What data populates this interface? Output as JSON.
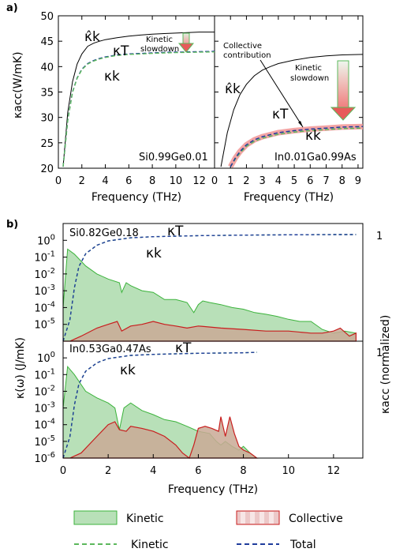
{
  "chart_data": [
    {
      "panel": "a)",
      "type": "line",
      "ylabel": "κacc(W/mK)",
      "ylim": [
        20,
        50
      ],
      "yticks": [
        20,
        25,
        30,
        35,
        40,
        45,
        50
      ],
      "sub": [
        {
          "sample": "Si0.99Ge0.01",
          "xlabel": "Frequency (THz)",
          "xlim": [
            0,
            13.3
          ],
          "xticks": [
            0,
            2,
            4,
            6,
            8,
            10,
            12
          ],
          "series": [
            {
              "name": "κ̂k",
              "x": [
                0.4,
                0.8,
                1.2,
                1.6,
                2.0,
                2.5,
                3.0,
                3.5,
                4.0,
                5.0,
                6.0,
                7.0,
                8.0,
                9.0,
                10.0,
                11.0,
                12.0,
                13.3
              ],
              "y": [
                20.3,
                31.0,
                37.0,
                40.5,
                42.5,
                44.0,
                44.6,
                45.0,
                45.3,
                45.7,
                46.0,
                46.2,
                46.4,
                46.5,
                46.6,
                46.7,
                46.8,
                46.8
              ]
            },
            {
              "name": "κT",
              "x": [
                0.4,
                0.8,
                1.2,
                1.6,
                2.0,
                2.5,
                3.0,
                3.5,
                4.0,
                5.0,
                6.0,
                7.0,
                8.0,
                9.0,
                10.0,
                11.0,
                12.0,
                13.3
              ],
              "y": [
                20.3,
                29.5,
                35.0,
                37.8,
                39.5,
                40.6,
                41.2,
                41.6,
                41.9,
                42.3,
                42.5,
                42.6,
                42.7,
                42.8,
                42.85,
                42.9,
                42.95,
                43.0
              ]
            },
            {
              "name": "κk",
              "x": [
                0.4,
                0.8,
                1.2,
                1.6,
                2.0,
                2.5,
                3.0,
                3.5,
                4.0,
                5.0,
                6.0,
                7.0,
                8.0,
                9.0,
                10.0,
                11.0,
                12.0,
                13.3
              ],
              "y": [
                20.3,
                29.4,
                34.9,
                37.7,
                39.4,
                40.5,
                41.1,
                41.5,
                41.8,
                42.2,
                42.4,
                42.5,
                42.6,
                42.7,
                42.75,
                42.8,
                42.85,
                42.9
              ]
            }
          ],
          "annotations": [
            "Kinetic",
            "slowdown"
          ]
        },
        {
          "sample": "In0.01Ga0.99As",
          "xlabel": "Frequency (THz)",
          "xlim": [
            0,
            9.3
          ],
          "xticks": [
            0,
            1,
            2,
            3,
            4,
            5,
            6,
            7,
            8,
            9
          ],
          "series": [
            {
              "name": "κ̂k",
              "x": [
                0.4,
                0.8,
                1.2,
                1.6,
                2.0,
                2.5,
                3.0,
                3.5,
                4.0,
                5.0,
                6.0,
                7.0,
                8.0,
                9.3
              ],
              "y": [
                20.3,
                27.0,
                31.5,
                34.5,
                36.5,
                38.2,
                39.3,
                40.0,
                40.6,
                41.3,
                41.8,
                42.1,
                42.3,
                42.4
              ]
            },
            {
              "name": "κT",
              "x": [
                1.0,
                1.3,
                1.6,
                2.0,
                2.5,
                3.0,
                3.5,
                4.0,
                5.0,
                6.0,
                7.0,
                8.0,
                9.3
              ],
              "y": [
                20.3,
                22.0,
                23.3,
                24.6,
                25.6,
                26.2,
                26.6,
                27.0,
                27.4,
                27.7,
                27.9,
                28.1,
                28.2
              ]
            },
            {
              "name": "κk",
              "x": [
                1.0,
                1.3,
                1.6,
                2.0,
                2.5,
                3.0,
                3.5,
                4.0,
                5.0,
                6.0,
                7.0,
                8.0,
                9.3
              ],
              "y": [
                20.3,
                21.8,
                23.0,
                24.3,
                25.3,
                25.9,
                26.3,
                26.7,
                27.1,
                27.4,
                27.6,
                27.8,
                27.9
              ]
            }
          ],
          "annotations": [
            "Collective",
            "contribution",
            "Kinetic",
            "slowdown"
          ]
        }
      ]
    },
    {
      "panel": "b)",
      "type": "area",
      "ylabel": "κ(ω) (J/mK)",
      "y2label": "κacc (normalized)",
      "y2tick": "1",
      "xlabel": "Frequency (THz)",
      "xlim": [
        0,
        13.3
      ],
      "xticks": [
        0,
        2,
        4,
        6,
        8,
        10,
        12
      ],
      "yscale": "log",
      "sub": [
        {
          "sample": "Si0.82Ge0.18",
          "ylim": [
            1e-06,
            10
          ],
          "yticks": [
            "10^0",
            "10^-1",
            "10^-2",
            "10^-3",
            "10^-4",
            "10^-5"
          ],
          "kinetic": {
            "x": [
              0,
              0.2,
              0.5,
              1.0,
              1.5,
              2.0,
              2.5,
              2.6,
              2.8,
              3.0,
              3.5,
              4.0,
              4.5,
              5.0,
              5.5,
              5.8,
              6.0,
              6.2,
              6.5,
              7.0,
              7.5,
              8.0,
              8.5,
              9.0,
              9.5,
              10.0,
              10.5,
              11.0,
              11.5,
              12.0,
              12.5,
              13.0
            ],
            "y": [
              0.0001,
              0.3,
              0.15,
              0.03,
              0.01,
              0.005,
              0.003,
              0.0008,
              0.003,
              0.002,
              0.001,
              0.0008,
              0.0003,
              0.0003,
              0.0002,
              5e-05,
              0.00015,
              0.00025,
              0.0002,
              0.00015,
              0.0001,
              8e-05,
              5e-05,
              4e-05,
              3e-05,
              2e-05,
              1.5e-05,
              1.5e-05,
              5e-06,
              3e-06,
              4e-06,
              3e-06
            ]
          },
          "collective": {
            "x": [
              0,
              0.3,
              0.8,
              1.5,
              2.0,
              2.4,
              2.6,
              3.0,
              3.5,
              4.0,
              4.5,
              5.0,
              5.5,
              6.0,
              7.0,
              8.0,
              9.0,
              10.0,
              11.0,
              11.5,
              12.0,
              12.3,
              12.7,
              13.0
            ],
            "y": [
              1e-06,
              1e-06,
              2e-06,
              6e-06,
              1e-05,
              1.5e-05,
              4e-06,
              8e-06,
              1e-05,
              1.5e-05,
              1e-05,
              8e-06,
              6e-06,
              8e-06,
              6e-06,
              5e-06,
              4e-06,
              4e-06,
              3e-06,
              3e-06,
              4e-06,
              6e-06,
              2e-06,
              3e-06
            ]
          },
          "kinetic_acc": {
            "x": [
              0,
              0.3,
              0.5,
              0.7,
              1.0,
              1.5,
              2.0,
              3.0,
              4.0,
              6.0,
              8.0,
              10.0,
              12.0,
              13.0
            ],
            "y": [
              0,
              0.2,
              0.5,
              0.7,
              0.82,
              0.9,
              0.94,
              0.97,
              0.98,
              0.99,
              0.995,
              0.998,
              1,
              1
            ]
          },
          "total_acc": {
            "x": [
              0,
              0.3,
              0.5,
              0.7,
              1.0,
              1.5,
              2.0,
              3.0,
              4.0,
              6.0,
              8.0,
              10.0,
              12.0,
              13.0
            ],
            "y": [
              0,
              0.2,
              0.5,
              0.7,
              0.82,
              0.9,
              0.94,
              0.97,
              0.98,
              0.99,
              0.995,
              0.998,
              1,
              1
            ]
          },
          "labels": [
            "κT",
            "κk"
          ]
        },
        {
          "sample": "In0.53Ga0.47As",
          "ylim": [
            1e-06,
            10
          ],
          "yticks": [
            "10^0",
            "10^-1",
            "10^-2",
            "10^-3",
            "10^-4",
            "10^-5",
            "10^-6"
          ],
          "kinetic": {
            "x": [
              0,
              0.2,
              0.5,
              1.0,
              1.5,
              2.0,
              2.3,
              2.5,
              2.7,
              3.0,
              3.5,
              4.0,
              4.5,
              5.0,
              5.5,
              6.0,
              6.5,
              6.8,
              7.0,
              7.2,
              7.5,
              7.8,
              8.0,
              8.3,
              8.6
            ],
            "y": [
              0.001,
              0.3,
              0.1,
              0.01,
              0.004,
              0.002,
              0.001,
              5e-05,
              0.001,
              0.002,
              0.0007,
              0.0004,
              0.0002,
              0.00015,
              8e-05,
              4e-05,
              3e-05,
              1e-05,
              6e-06,
              1e-05,
              5e-06,
              3e-06,
              5e-06,
              2e-06,
              1e-06
            ]
          },
          "collective": {
            "x": [
              0,
              0.3,
              0.8,
              1.5,
              2.0,
              2.3,
              2.5,
              2.8,
              3.0,
              3.5,
              4.0,
              4.5,
              5.0,
              5.3,
              5.6,
              5.8,
              6.0,
              6.3,
              6.6,
              6.9,
              7.0,
              7.2,
              7.4,
              7.6,
              7.8,
              8.0,
              8.3,
              8.6
            ],
            "y": [
              1e-06,
              1e-06,
              2e-06,
              2e-05,
              0.0001,
              0.00015,
              5e-05,
              4e-05,
              8e-05,
              6e-05,
              4e-05,
              2e-05,
              6e-06,
              2e-06,
              1e-06,
              6e-06,
              6e-05,
              8e-05,
              6e-05,
              4e-05,
              0.0003,
              2e-05,
              0.0003,
              3e-05,
              5e-06,
              3e-06,
              2e-06,
              1e-06
            ]
          },
          "kinetic_acc": {
            "x": [
              0,
              0.3,
              0.5,
              0.7,
              1.0,
              1.5,
              2.0,
              3.0,
              4.0,
              6.0,
              8.0,
              8.6
            ],
            "y": [
              0,
              0.2,
              0.5,
              0.7,
              0.82,
              0.9,
              0.94,
              0.97,
              0.98,
              0.99,
              0.995,
              1
            ]
          },
          "total_acc": {
            "x": [
              0,
              0.3,
              0.5,
              0.7,
              1.0,
              1.5,
              2.0,
              3.0,
              4.0,
              6.0,
              8.0,
              8.6
            ],
            "y": [
              0,
              0.2,
              0.5,
              0.7,
              0.82,
              0.9,
              0.94,
              0.97,
              0.98,
              0.99,
              0.995,
              1
            ]
          },
          "labels": [
            "κT",
            "κk"
          ]
        }
      ],
      "legend": [
        {
          "label": "Kinetic",
          "kind": "fill",
          "color": "#2ea32e"
        },
        {
          "label": "Collective",
          "kind": "fill",
          "color": "#d62728"
        },
        {
          "label": "Kinetic",
          "kind": "line-dash",
          "color": "#5cb85c"
        },
        {
          "label": "Total",
          "kind": "line-dash",
          "color": "#1f3c9c"
        }
      ]
    }
  ],
  "colors": {
    "kinetic_fill": "#b8e0b8",
    "kinetic_line": "#3cb33c",
    "collective_fill": "#e8c4c4",
    "collective_line": "#c81e1e",
    "total_dash": "#1f3c9c",
    "kinetic_dash": "#5cb85c",
    "hat_line": "#000000",
    "arrow_red": "#e03030",
    "arrow_green": "#5cb85c"
  }
}
